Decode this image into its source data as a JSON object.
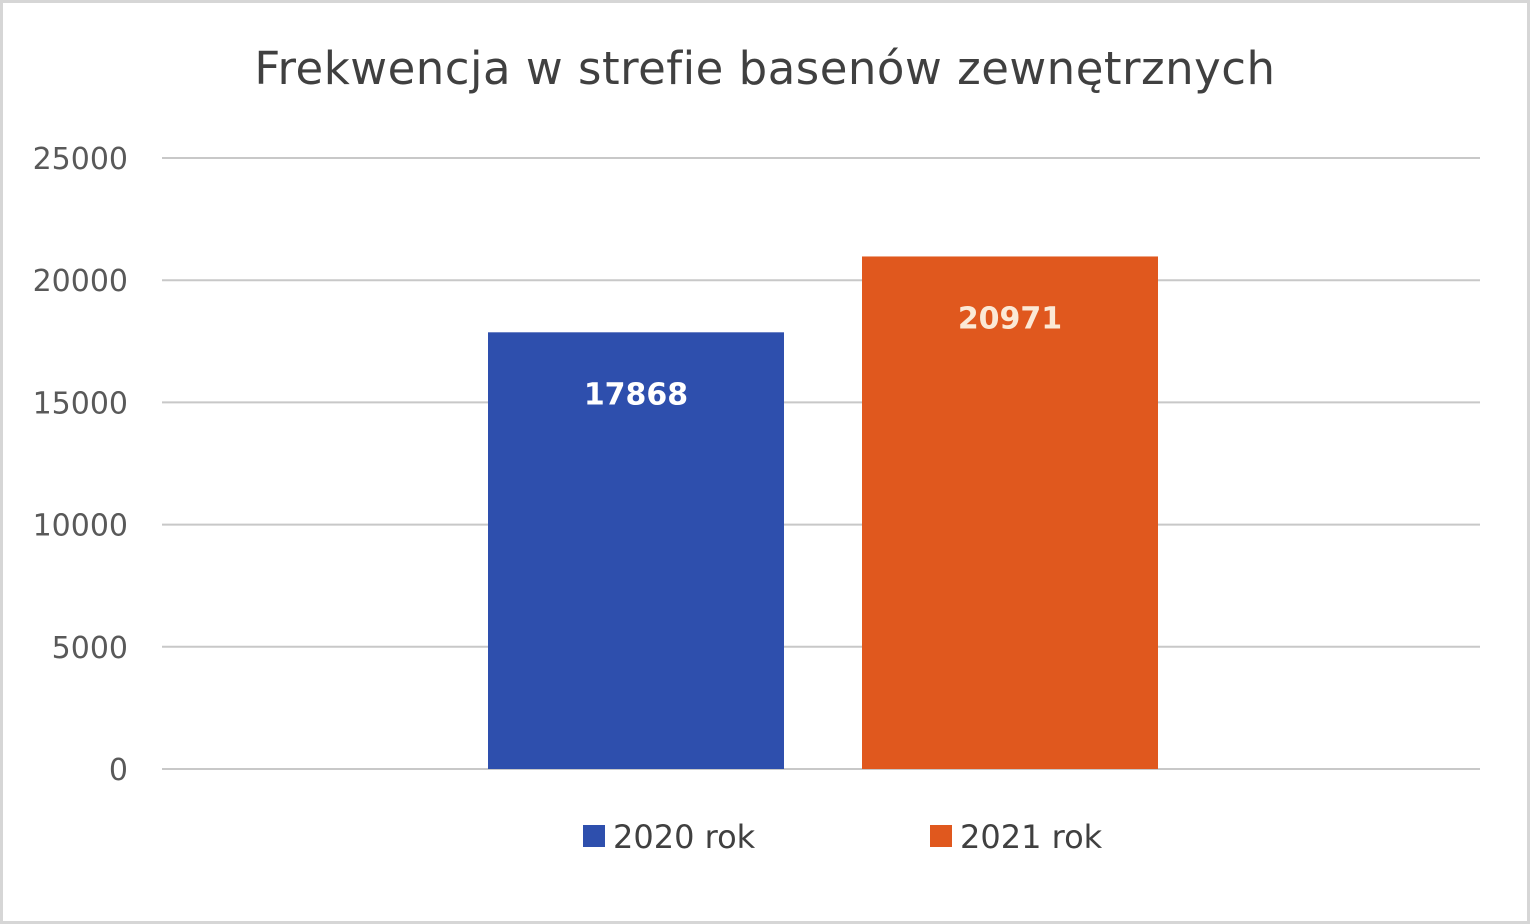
{
  "chart_data": {
    "type": "bar",
    "title": "Frekwencja w strefie basenów zewnętrznych",
    "xlabel": "",
    "ylabel": "",
    "ylim": [
      0,
      25000
    ],
    "yticks": [
      0,
      5000,
      10000,
      15000,
      20000,
      25000
    ],
    "grid": true,
    "legend_position": "bottom",
    "series": [
      {
        "name": "2020 rok",
        "value": 17868,
        "label": "17868",
        "color": "#2e4fad",
        "label_color": "#ffffff"
      },
      {
        "name": "2021 rok",
        "value": 20971,
        "label": "20971",
        "color": "#e0581e",
        "label_color": "#fbe9d6"
      }
    ]
  }
}
